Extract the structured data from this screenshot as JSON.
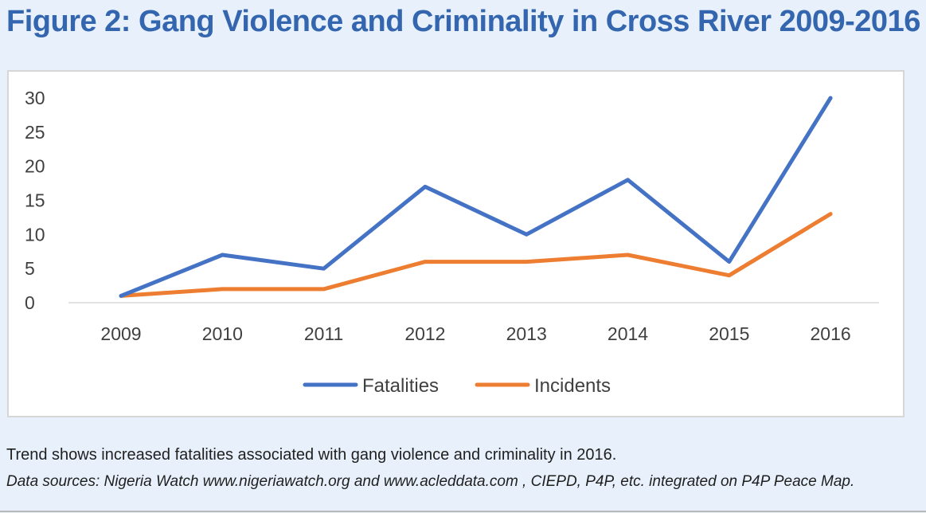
{
  "figure": {
    "title": "Figure 2: Gang Violence and Criminality in Cross River 2009-2016",
    "caption": "Trend shows increased fatalities associated with gang violence and criminality in 2016.",
    "sources": "Data sources: Nigeria Watch www.nigeriawatch.org  and www.acleddata.com , CIEPD, P4P, etc. integrated on P4P Peace Map."
  },
  "chart_data": {
    "type": "line",
    "title": "",
    "xlabel": "",
    "ylabel": "",
    "categories": [
      "2009",
      "2010",
      "2011",
      "2012",
      "2013",
      "2014",
      "2015",
      "2016"
    ],
    "ylim": [
      0,
      30
    ],
    "yticks": [
      0,
      5,
      10,
      15,
      20,
      25,
      30
    ],
    "grid": false,
    "legend_position": "bottom",
    "series": [
      {
        "name": "Fatalities",
        "color": "#4472c4",
        "values": [
          1,
          7,
          5,
          17,
          10,
          18,
          6,
          30
        ]
      },
      {
        "name": "Incidents",
        "color": "#ed7d31",
        "values": [
          1,
          2,
          2,
          6,
          6,
          7,
          4,
          13
        ]
      }
    ]
  }
}
